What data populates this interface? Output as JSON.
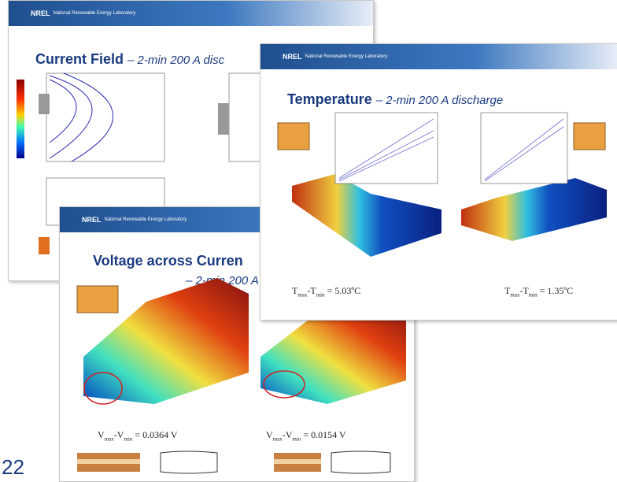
{
  "page_number": "22",
  "slides": [
    {
      "logo": "NREL",
      "header": "National Renewable Energy Laboratory",
      "title": "Current Field",
      "subtitle": "– 2-min 200 A disc"
    },
    {
      "logo": "NREL",
      "header": "National Renewable Energy Laboratory",
      "title": "Voltage across Curren",
      "subtitle": "– 2-min 200 A",
      "results": [
        [
          "V",
          "max",
          "-V",
          "min",
          " = 0.0364 V"
        ],
        [
          "V",
          "max",
          "-V",
          "min",
          " = 0.0154 V"
        ]
      ]
    },
    {
      "logo": "NREL",
      "header": "National Renewable Energy Laboratory",
      "title": "Temperature",
      "subtitle": "– 2-min 200 A discharge",
      "results": [
        [
          "T",
          "max",
          "-T",
          "min",
          " = 5.03ºC"
        ],
        [
          "T",
          "max",
          "-T",
          "min",
          " = 1.35ºC"
        ]
      ]
    }
  ]
}
